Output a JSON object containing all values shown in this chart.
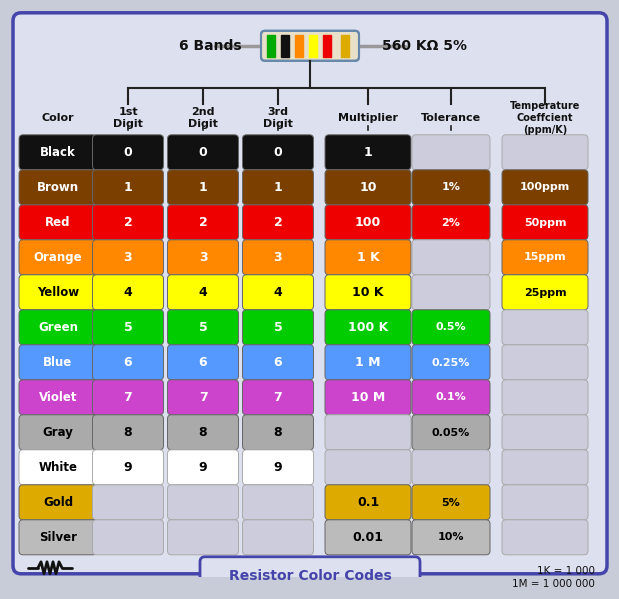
{
  "title_6bands": "6 Bands",
  "title_value": "560 KΩ 5%",
  "bg_color": "#c8ccd8",
  "panel_bg": "#dde0ee",
  "border_color": "#4444aa",
  "rows": [
    {
      "name": "Black",
      "bg": "#111111",
      "fg": "#ffffff",
      "d1": "0",
      "d2": "0",
      "d3": "0",
      "mult": "1",
      "tol": "",
      "temp": ""
    },
    {
      "name": "Brown",
      "bg": "#7b3f00",
      "fg": "#ffffff",
      "d1": "1",
      "d2": "1",
      "d3": "1",
      "mult": "10",
      "tol": "1%",
      "temp": "100ppm"
    },
    {
      "name": "Red",
      "bg": "#ee0000",
      "fg": "#ffffff",
      "d1": "2",
      "d2": "2",
      "d3": "2",
      "mult": "100",
      "tol": "2%",
      "temp": "50ppm"
    },
    {
      "name": "Orange",
      "bg": "#ff8800",
      "fg": "#ffffff",
      "d1": "3",
      "d2": "3",
      "d3": "3",
      "mult": "1 K",
      "tol": "",
      "temp": "15ppm"
    },
    {
      "name": "Yellow",
      "bg": "#ffff00",
      "fg": "#000000",
      "d1": "4",
      "d2": "4",
      "d3": "4",
      "mult": "10 K",
      "tol": "",
      "temp": "25ppm"
    },
    {
      "name": "Green",
      "bg": "#00cc00",
      "fg": "#ffffff",
      "d1": "5",
      "d2": "5",
      "d3": "5",
      "mult": "100 K",
      "tol": "0.5%",
      "temp": ""
    },
    {
      "name": "Blue",
      "bg": "#5599ff",
      "fg": "#ffffff",
      "d1": "6",
      "d2": "6",
      "d3": "6",
      "mult": "1 M",
      "tol": "0.25%",
      "temp": ""
    },
    {
      "name": "Violet",
      "bg": "#cc44cc",
      "fg": "#ffffff",
      "d1": "7",
      "d2": "7",
      "d3": "7",
      "mult": "10 M",
      "tol": "0.1%",
      "temp": ""
    },
    {
      "name": "Gray",
      "bg": "#aaaaaa",
      "fg": "#000000",
      "d1": "8",
      "d2": "8",
      "d3": "8",
      "mult": "",
      "tol": "0.05%",
      "temp": ""
    },
    {
      "name": "White",
      "bg": "#ffffff",
      "fg": "#000000",
      "d1": "9",
      "d2": "9",
      "d3": "9",
      "mult": "",
      "tol": "",
      "temp": ""
    },
    {
      "name": "Gold",
      "bg": "#ddaa00",
      "fg": "#000000",
      "d1": "",
      "d2": "",
      "d3": "",
      "mult": "0.1",
      "tol": "5%",
      "temp": ""
    },
    {
      "name": "Silver",
      "bg": "#bbbbbb",
      "fg": "#000000",
      "d1": "",
      "d2": "",
      "d3": "",
      "mult": "0.01",
      "tol": "10%",
      "temp": ""
    }
  ],
  "resistor_bands": [
    "#00aa00",
    "#111111",
    "#ff8800",
    "#ffff00",
    "#ee0000",
    "#ddaa00"
  ],
  "resistor_body": "#e8e0c8",
  "footer_text": "Resistor Color Codes",
  "note_text": "1K = 1 000\n1M = 1 000 000",
  "empty_color": "#ccccdd",
  "empty_edge": "#aaaaaa"
}
